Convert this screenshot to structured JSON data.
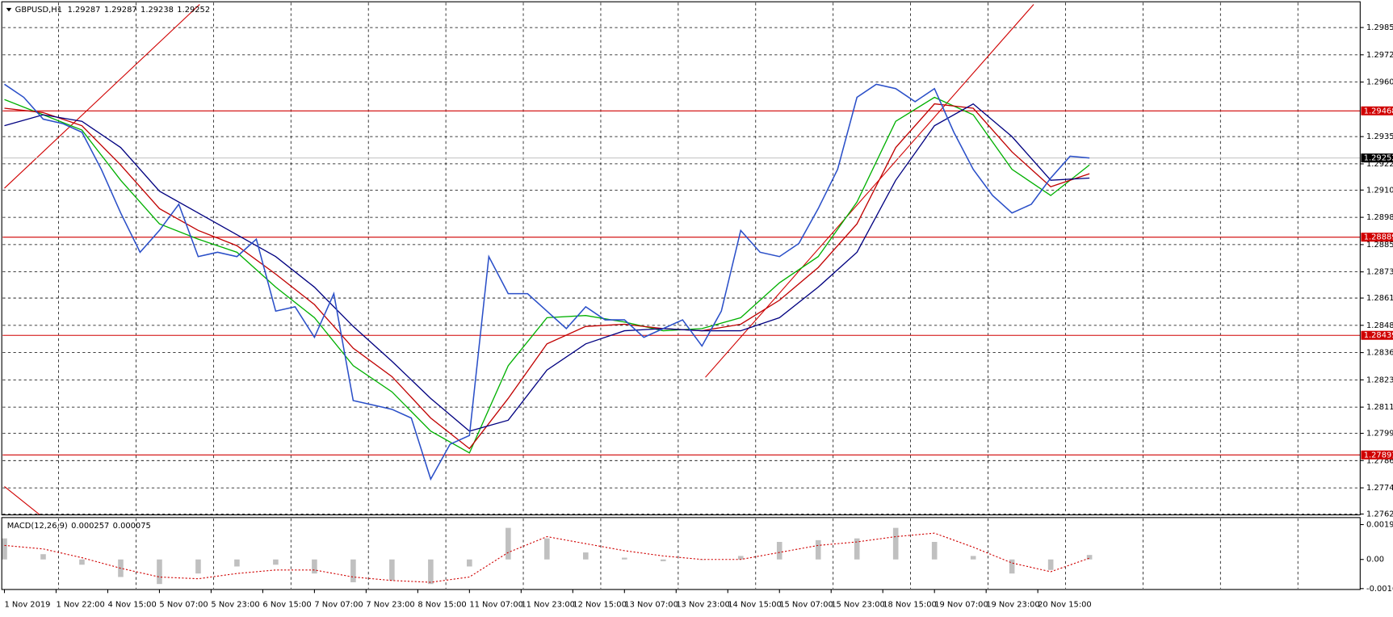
{
  "chart_data": [
    {
      "type": "line",
      "symbol": "GBPUSD,H1",
      "ohlc": [
        1.29287,
        1.29287,
        1.29238,
        1.29252
      ],
      "x": [
        0,
        6,
        12,
        18,
        24,
        30,
        36,
        42,
        48,
        54,
        60,
        66,
        72,
        78,
        84,
        90,
        96,
        102,
        108,
        114,
        120,
        126,
        132,
        138,
        144,
        150,
        156,
        162,
        168,
        174,
        180,
        186,
        192,
        198,
        204,
        210,
        216,
        222,
        228,
        234,
        240,
        246,
        252,
        258,
        264,
        270,
        276,
        282,
        288,
        294,
        300,
        306,
        312,
        318,
        324,
        330,
        336
      ],
      "xlim": [
        0,
        419
      ],
      "xticks": [
        {
          "value": 0,
          "label": "1 Nov 2019"
        },
        {
          "value": 16,
          "label": "1 Nov 22:00"
        },
        {
          "value": 32,
          "label": "4 Nov 15:00"
        },
        {
          "value": 48,
          "label": "5 Nov 07:00"
        },
        {
          "value": 64,
          "label": "5 Nov 23:00"
        },
        {
          "value": 80,
          "label": "6 Nov 15:00"
        },
        {
          "value": 96,
          "label": "7 Nov 07:00"
        },
        {
          "value": 112,
          "label": "7 Nov 23:00"
        },
        {
          "value": 128,
          "label": "8 Nov 15:00"
        },
        {
          "value": 144,
          "label": "11 Nov 07:00"
        },
        {
          "value": 160,
          "label": "11 Nov 23:00"
        },
        {
          "value": 176,
          "label": "12 Nov 15:00"
        },
        {
          "value": 192,
          "label": "13 Nov 07:00"
        },
        {
          "value": 208,
          "label": "13 Nov 23:00"
        },
        {
          "value": 224,
          "label": "14 Nov 15:00"
        },
        {
          "value": 240,
          "label": "15 Nov 07:00"
        },
        {
          "value": 256,
          "label": "15 Nov 23:00"
        },
        {
          "value": 272,
          "label": "18 Nov 15:00"
        },
        {
          "value": 288,
          "label": "19 Nov 07:00"
        },
        {
          "value": 304,
          "label": "19 Nov 23:00"
        },
        {
          "value": 320,
          "label": "20 Nov 15:00"
        }
      ],
      "ylim": [
        1.27616,
        1.29968
      ],
      "yticks": [
        {
          "value": 1.2985,
          "label": "1.29850"
        },
        1.29725,
        {
          "value": 1.296,
          "label": "1.29600"
        },
        {
          "value": 1.2935,
          "label": "1.29350"
        },
        1.29225,
        1.29105,
        {
          "value": 1.2898,
          "label": "1.28980"
        },
        1.28855,
        {
          "value": 1.2873,
          "label": "1.28730"
        },
        {
          "value": 1.2861,
          "label": "1.28610"
        },
        1.28485,
        {
          "value": 1.2836,
          "label": "1.28360"
        },
        1.28235,
        {
          "value": 1.2811,
          "label": "1.28110"
        },
        {
          "value": 1.2799,
          "label": "1.27990"
        },
        1.27865,
        {
          "value": 1.2774,
          "label": "1.27740"
        },
        {
          "value": 1.2762,
          "label": "1.27620"
        }
      ],
      "grid": true,
      "series": [
        {
          "color": "#2a4fc8",
          "values": [
            1.2959,
            1.2953,
            1.2943,
            1.2941,
            1.2937,
            1.292,
            1.29,
            1.2882,
            1.2892,
            1.2904,
            1.288,
            1.2882,
            1.288,
            1.2888,
            1.2855,
            1.2857,
            1.2843,
            1.2863,
            1.2814,
            1.2812,
            1.281,
            1.2806,
            1.2778,
            1.2794,
            1.2798,
            1.288,
            1.2863,
            1.2863,
            1.2855,
            1.2847,
            1.2857,
            1.2851,
            1.2851,
            1.2843,
            1.2847,
            1.2851,
            1.2839,
            1.2855,
            1.2892,
            1.2882,
            1.288,
            1.2886,
            1.2902,
            1.292,
            1.2953,
            1.2959,
            1.2957,
            1.2951,
            1.2957,
            1.2937,
            1.292,
            1.2908,
            1.29,
            1.2904,
            1.2916,
            1.2926,
            1.29252
          ]
        }
      ],
      "ma_x": [
        0,
        12,
        24,
        36,
        48,
        60,
        72,
        84,
        96,
        108,
        120,
        132,
        144,
        156,
        168,
        180,
        192,
        204,
        216,
        228,
        240,
        252,
        264,
        276,
        288,
        300,
        312,
        324,
        336
      ],
      "ma_series": [
        {
          "color": "#00b000",
          "values": [
            1.2952,
            1.2945,
            1.2938,
            1.2915,
            1.2895,
            1.2888,
            1.2882,
            1.2866,
            1.2852,
            1.283,
            1.2818,
            1.28,
            1.279,
            1.283,
            1.2852,
            1.2853,
            1.285,
            1.2846,
            1.2847,
            1.2852,
            1.2868,
            1.288,
            1.2905,
            1.2942,
            1.2953,
            1.2945,
            1.292,
            1.2908,
            1.2922
          ]
        },
        {
          "color": "#c00000",
          "values": [
            1.2948,
            1.2946,
            1.294,
            1.2922,
            1.2902,
            1.2892,
            1.2885,
            1.2872,
            1.2858,
            1.2838,
            1.2825,
            1.2806,
            1.2792,
            1.2815,
            1.284,
            1.2848,
            1.2849,
            1.2847,
            1.2846,
            1.2849,
            1.286,
            1.2875,
            1.2895,
            1.293,
            1.295,
            1.2948,
            1.2928,
            1.2912,
            1.2918
          ]
        },
        {
          "color": "#000080",
          "values": [
            1.294,
            1.2945,
            1.2942,
            1.293,
            1.291,
            1.29,
            1.289,
            1.288,
            1.2866,
            1.2848,
            1.2832,
            1.2815,
            1.28,
            1.2805,
            1.2828,
            1.284,
            1.2846,
            1.2847,
            1.2846,
            1.2846,
            1.2852,
            1.2866,
            1.2882,
            1.2915,
            1.294,
            1.295,
            1.2935,
            1.2915,
            1.2916
          ]
        }
      ],
      "levels": [
        1.29468,
        1.28889,
        1.28439,
        1.27891
      ],
      "level_color": "#d00000"
    },
    {
      "type": "macd",
      "title": "MACD(12,26,9)",
      "readout": [
        0.000257,
        7.5e-05
      ],
      "x": [
        0,
        12,
        24,
        36,
        48,
        60,
        72,
        84,
        96,
        108,
        120,
        132,
        144,
        156,
        168,
        180,
        192,
        204,
        216,
        228,
        240,
        252,
        264,
        276,
        288,
        300,
        312,
        324,
        336
      ],
      "xlim": [
        0,
        419
      ],
      "ylim": [
        -0.00166,
        0.002336
      ],
      "yticks": [
        0.001988,
        {
          "value": 0,
          "label": "0.00"
        },
        -0.00166
      ],
      "series": [
        {
          "color": "#c0c0c0",
          "values": [
            0.0012,
            0.0003,
            -0.0003,
            -0.001,
            -0.0014,
            -0.0008,
            -0.0004,
            -0.0003,
            -0.0008,
            -0.0013,
            -0.0012,
            -0.0014,
            -0.0004,
            0.0018,
            0.0012,
            0.0004,
            0.0001,
            -0.0001,
            0.0,
            0.0002,
            0.001,
            0.0011,
            0.0012,
            0.0018,
            0.001,
            0.0002,
            -0.0008,
            -0.0006,
            0.000257
          ]
        },
        {
          "color": "#d00000",
          "values": [
            0.0008,
            0.0006,
            0.0001,
            -0.0005,
            -0.001,
            -0.0011,
            -0.0008,
            -0.0006,
            -0.0006,
            -0.001,
            -0.0012,
            -0.0013,
            -0.001,
            0.0004,
            0.0013,
            0.0009,
            0.0005,
            0.0002,
            0.0,
            0.0,
            0.0004,
            0.0008,
            0.001,
            0.0013,
            0.0015,
            0.0007,
            -0.0002,
            -0.0007,
            7.5e-05
          ]
        }
      ]
    }
  ]
}
